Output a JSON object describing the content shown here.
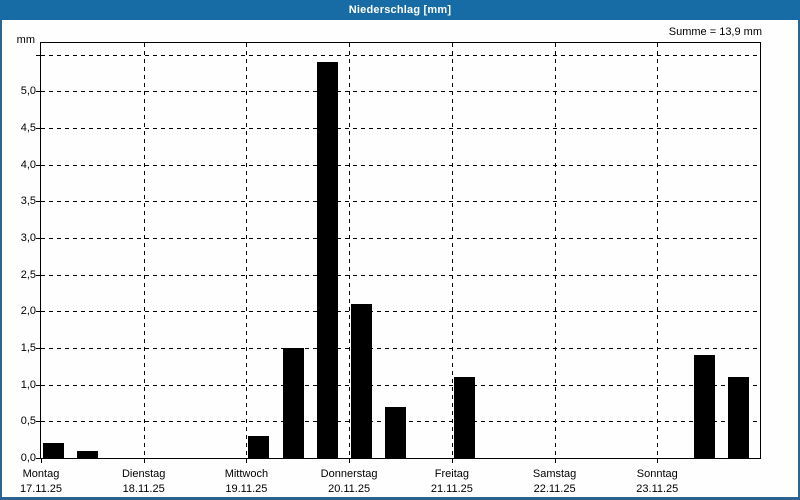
{
  "window": {
    "title": "Niederschlag [mm]"
  },
  "chart": {
    "sum_label": "Summe = 13,9 mm",
    "y_unit": "mm",
    "colors": {
      "titlebar_bg": "#176CA6",
      "titlebar_text": "#FFFFFF",
      "window_border": "#2A648F",
      "background": "#FDFEFD",
      "bar": "#000000",
      "grid": "#000000",
      "text": "#000000"
    }
  },
  "chart_data": {
    "type": "bar",
    "title": "Niederschlag [mm]",
    "ylabel": "mm",
    "xlabel": "",
    "ylim": [
      0,
      5.66
    ],
    "ytick_step": 0.5,
    "grid": "dashed",
    "legend": "none",
    "yticks": [
      {
        "value": 0.0,
        "label": "0,0"
      },
      {
        "value": 0.5,
        "label": "0,5"
      },
      {
        "value": 1.0,
        "label": "1,0"
      },
      {
        "value": 1.5,
        "label": "1,5"
      },
      {
        "value": 2.0,
        "label": "2,0"
      },
      {
        "value": 2.5,
        "label": "2,5"
      },
      {
        "value": 3.0,
        "label": "3,0"
      },
      {
        "value": 3.5,
        "label": "3,5"
      },
      {
        "value": 4.0,
        "label": "4,0"
      },
      {
        "value": 4.5,
        "label": "4,5"
      },
      {
        "value": 5.0,
        "label": "5,0"
      },
      {
        "value": 5.5,
        "label": ""
      }
    ],
    "slots_per_day": 3,
    "days": [
      {
        "weekday": "Montag",
        "date": "17.11.25"
      },
      {
        "weekday": "Dienstag",
        "date": "18.11.25"
      },
      {
        "weekday": "Mittwoch",
        "date": "19.11.25"
      },
      {
        "weekday": "Donnerstag",
        "date": "20.11.25"
      },
      {
        "weekday": "Freitag",
        "date": "21.11.25"
      },
      {
        "weekday": "Samstag",
        "date": "22.11.25"
      },
      {
        "weekday": "Sonntag",
        "date": "23.11.25"
      }
    ],
    "bars_mm": [
      {
        "day": 0,
        "slot": 0,
        "value": 0.2
      },
      {
        "day": 0,
        "slot": 1,
        "value": 0.1
      },
      {
        "day": 2,
        "slot": 0,
        "value": 0.3
      },
      {
        "day": 2,
        "slot": 1,
        "value": 1.5
      },
      {
        "day": 2,
        "slot": 2,
        "value": 5.4
      },
      {
        "day": 3,
        "slot": 0,
        "value": 2.1
      },
      {
        "day": 3,
        "slot": 1,
        "value": 0.7
      },
      {
        "day": 4,
        "slot": 0,
        "value": 1.1
      },
      {
        "day": 6,
        "slot": 1,
        "value": 1.4
      },
      {
        "day": 6,
        "slot": 2,
        "value": 1.1
      }
    ],
    "sum_mm": 13.9
  }
}
